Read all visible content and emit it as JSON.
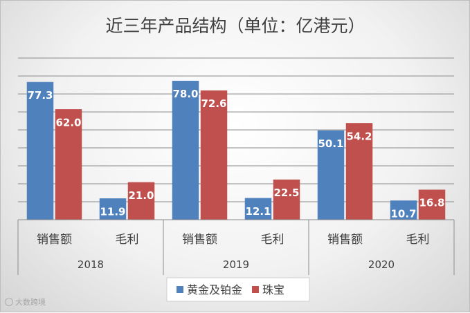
{
  "chart_data": {
    "type": "bar",
    "title": "近三年产品结构（单位：亿港元）",
    "groups": [
      "2018",
      "2019",
      "2020"
    ],
    "categories": [
      "销售额",
      "毛利"
    ],
    "series": [
      {
        "name": "黄金及铂金",
        "color": "#4f81bd",
        "values": [
          [
            77.3,
            11.9
          ],
          [
            78.0,
            12.1
          ],
          [
            50.1,
            10.7
          ]
        ]
      },
      {
        "name": "珠宝",
        "color": "#c0504d",
        "values": [
          [
            62.0,
            21.0
          ],
          [
            72.6,
            22.5
          ],
          [
            54.2,
            16.8
          ]
        ]
      }
    ],
    "ylim": [
      0,
      80
    ],
    "grid": true,
    "legend": "bottom"
  },
  "watermark": "大数跨境"
}
